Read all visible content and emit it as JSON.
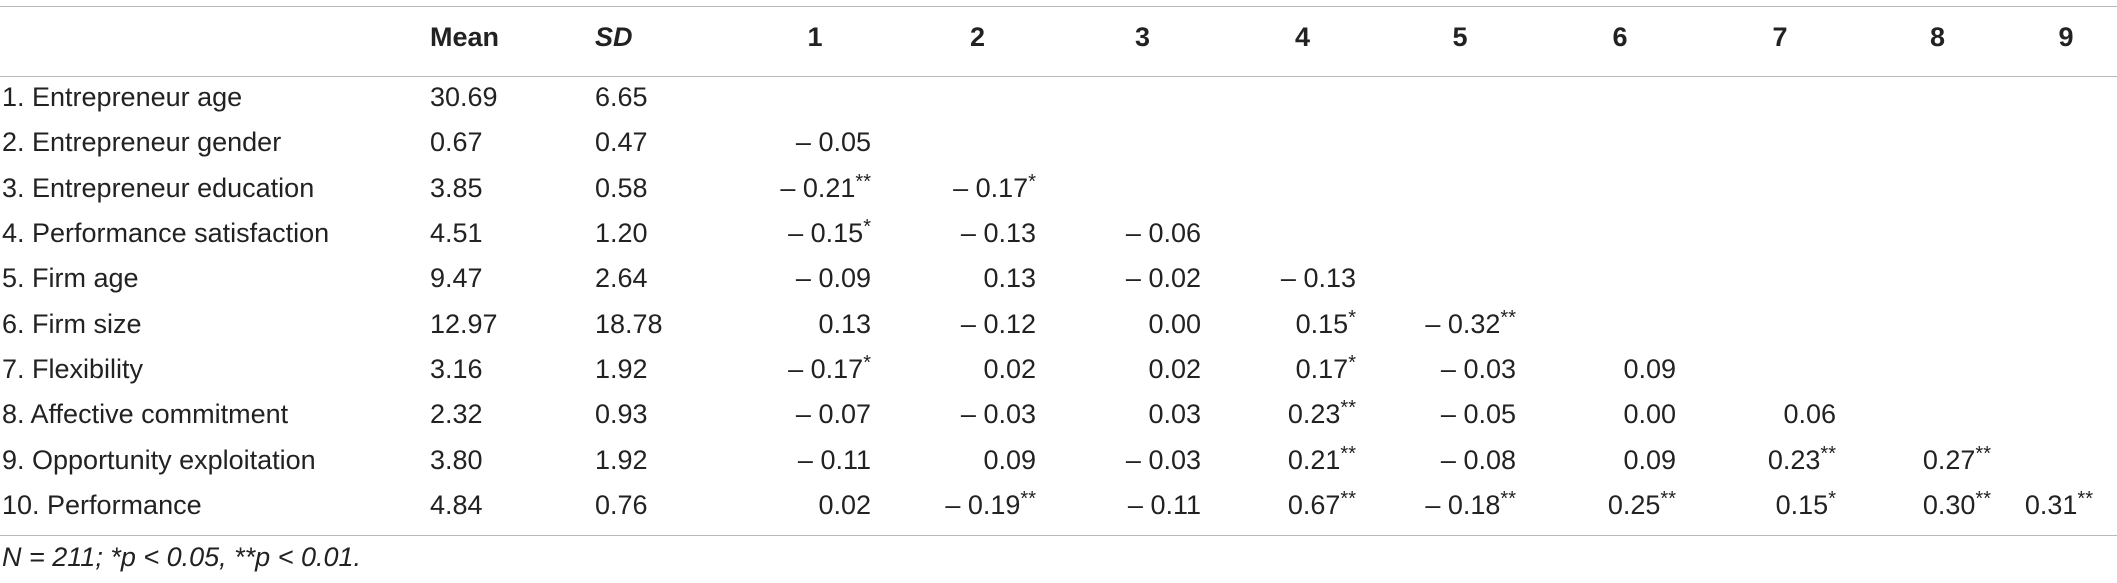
{
  "table": {
    "headers": [
      "",
      "Mean",
      "SD",
      "1",
      "2",
      "3",
      "4",
      "5",
      "6",
      "7",
      "8",
      "9"
    ],
    "rows": [
      {
        "label": "1. Entrepreneur age",
        "mean": "30.69",
        "sd": "6.65",
        "c": [
          "",
          "",
          "",
          "",
          "",
          "",
          "",
          "",
          ""
        ]
      },
      {
        "label": "2. Entrepreneur gender",
        "mean": "0.67",
        "sd": "0.47",
        "c": [
          "– 0.05",
          "",
          "",
          "",
          "",
          "",
          "",
          "",
          ""
        ]
      },
      {
        "label": "3. Entrepreneur education",
        "mean": "3.85",
        "sd": "0.58",
        "c": [
          "– 0.21**",
          "– 0.17*",
          "",
          "",
          "",
          "",
          "",
          "",
          ""
        ]
      },
      {
        "label": "4. Performance satisfaction",
        "mean": "4.51",
        "sd": "1.20",
        "c": [
          "– 0.15*",
          "– 0.13",
          "– 0.06",
          "",
          "",
          "",
          "",
          "",
          ""
        ]
      },
      {
        "label": "5. Firm age",
        "mean": "9.47",
        "sd": "2.64",
        "c": [
          "– 0.09",
          "0.13",
          "– 0.02",
          "– 0.13",
          "",
          "",
          "",
          "",
          ""
        ]
      },
      {
        "label": "6. Firm size",
        "mean": "12.97",
        "sd": "18.78",
        "c": [
          "0.13",
          "– 0.12",
          "0.00",
          "0.15*",
          "– 0.32**",
          "",
          "",
          "",
          ""
        ]
      },
      {
        "label": "7. Flexibility",
        "mean": "3.16",
        "sd": "1.92",
        "c": [
          "– 0.17*",
          "0.02",
          "0.02",
          "0.17*",
          "– 0.03",
          "0.09",
          "",
          "",
          ""
        ]
      },
      {
        "label": "8. Affective commitment",
        "mean": "2.32",
        "sd": "0.93",
        "c": [
          "– 0.07",
          "– 0.03",
          "0.03",
          "0.23**",
          "– 0.05",
          "0.00",
          "0.06",
          "",
          ""
        ]
      },
      {
        "label": "9. Opportunity exploitation",
        "mean": "3.80",
        "sd": "1.92",
        "c": [
          "– 0.11",
          "0.09",
          "– 0.03",
          "0.21**",
          "– 0.08",
          "0.09",
          "0.23**",
          "0.27**",
          ""
        ]
      },
      {
        "label": "10. Performance",
        "mean": "4.84",
        "sd": "0.76",
        "c": [
          "0.02",
          "– 0.19**",
          "– 0.11",
          "0.67**",
          "– 0.18**",
          "0.25**",
          "0.15*",
          "0.30**",
          "0.31**"
        ]
      }
    ]
  },
  "note": "N = 211; *p < 0.05, **p < 0.01."
}
